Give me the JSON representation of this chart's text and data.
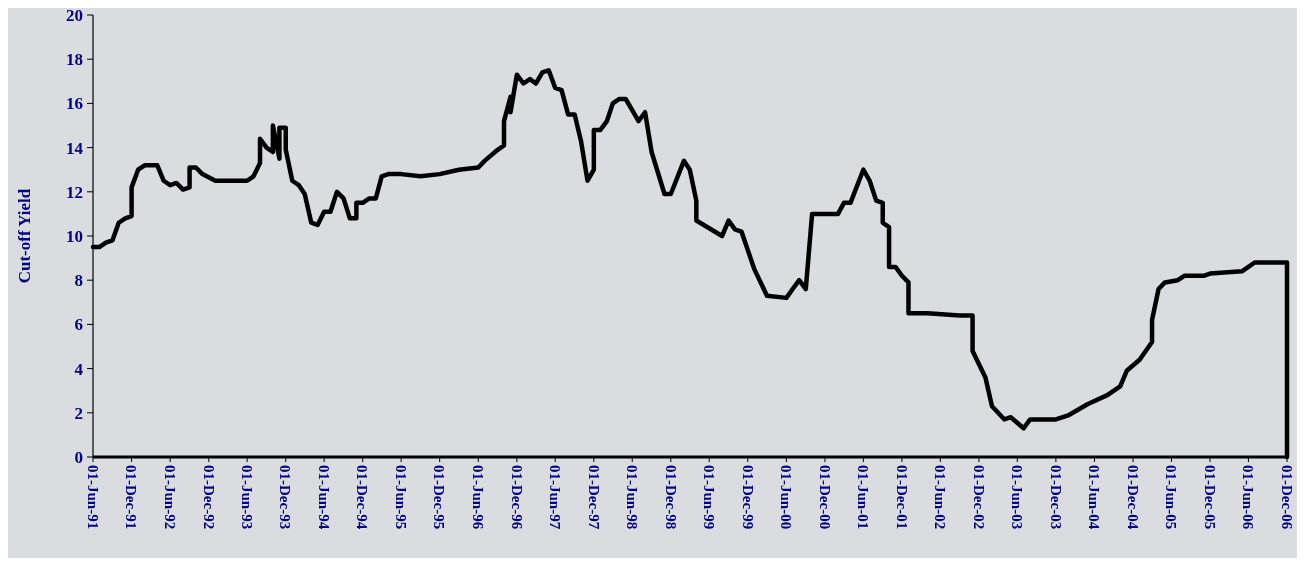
{
  "chart_data": {
    "type": "line",
    "ylabel": "Cut-off Yield",
    "ylim": [
      0,
      20
    ],
    "yticks": [
      0,
      2,
      4,
      6,
      8,
      10,
      12,
      14,
      16,
      18,
      20
    ],
    "xlim": [
      "1991-06-01",
      "2006-12-01"
    ],
    "xticks": [
      {
        "value": "1991-06-01",
        "label": "01-Jun-91"
      },
      {
        "value": "1991-12-01",
        "label": "01-Dec-91"
      },
      {
        "value": "1992-06-01",
        "label": "01-Jun-92"
      },
      {
        "value": "1992-12-01",
        "label": "01-Dec-92"
      },
      {
        "value": "1993-06-01",
        "label": "01-Jun-93"
      },
      {
        "value": "1993-12-01",
        "label": "01-Dec-93"
      },
      {
        "value": "1994-06-01",
        "label": "01-Jun-94"
      },
      {
        "value": "1994-12-01",
        "label": "01-Dec-94"
      },
      {
        "value": "1995-06-01",
        "label": "01-Jun-95"
      },
      {
        "value": "1995-12-01",
        "label": "01-Dec-95"
      },
      {
        "value": "1996-06-01",
        "label": "01-Jun-96"
      },
      {
        "value": "1996-12-01",
        "label": "01-Dec-96"
      },
      {
        "value": "1997-06-01",
        "label": "01-Jun-97"
      },
      {
        "value": "1997-12-01",
        "label": "01-Dec-97"
      },
      {
        "value": "1998-06-01",
        "label": "01-Jun-98"
      },
      {
        "value": "1998-12-01",
        "label": "01-Dec-98"
      },
      {
        "value": "1999-06-01",
        "label": "01-Jun-99"
      },
      {
        "value": "1999-12-01",
        "label": "01-Dec-99"
      },
      {
        "value": "2000-06-01",
        "label": "01-Jun-00"
      },
      {
        "value": "2000-12-01",
        "label": "01-Dec-00"
      },
      {
        "value": "2001-06-01",
        "label": "01-Jun-01"
      },
      {
        "value": "2001-12-01",
        "label": "01-Dec-01"
      },
      {
        "value": "2002-06-01",
        "label": "01-Jun-02"
      },
      {
        "value": "2002-12-01",
        "label": "01-Dec-02"
      },
      {
        "value": "2003-06-01",
        "label": "01-Jun-03"
      },
      {
        "value": "2003-12-01",
        "label": "01-Dec-03"
      },
      {
        "value": "2004-06-01",
        "label": "01-Jun-04"
      },
      {
        "value": "2004-12-01",
        "label": "01-Dec-04"
      },
      {
        "value": "2005-06-01",
        "label": "01-Jun-05"
      },
      {
        "value": "2005-12-01",
        "label": "01-Dec-05"
      },
      {
        "value": "2006-06-01",
        "label": "01-Jun-06"
      },
      {
        "value": "2006-12-01",
        "label": "01-Dec-06"
      }
    ],
    "grid": false,
    "marker": "none",
    "line_style": "solid",
    "x": [
      "1991-06",
      "1991-07",
      "1991-08",
      "1991-09",
      "1991-10",
      "1991-11",
      "1991-12",
      "1991-12",
      "1992-01",
      "1992-02",
      "1992-04",
      "1992-05",
      "1992-06",
      "1992-07",
      "1992-08",
      "1992-09",
      "1992-09",
      "1992-10",
      "1992-11",
      "1993-01",
      "1993-06",
      "1993-07",
      "1993-08",
      "1993-08",
      "1993-09",
      "1993-10",
      "1993-10",
      "1993-11",
      "1993-11",
      "1993-12",
      "1993-12",
      "1994-01",
      "1994-02",
      "1994-03",
      "1994-04",
      "1994-05",
      "1994-06",
      "1994-07",
      "1994-08",
      "1994-09",
      "1994-10",
      "1994-11",
      "1994-11",
      "1994-12",
      "1995-01",
      "1995-02",
      "1995-03",
      "1995-04",
      "1995-06",
      "1995-09",
      "1995-12",
      "1996-03",
      "1996-06",
      "1996-07",
      "1996-09",
      "1996-10",
      "1996-10",
      "1996-11",
      "1996-11",
      "1996-12",
      "1997-01",
      "1997-02",
      "1997-03",
      "1997-04",
      "1997-05",
      "1997-06",
      "1997-07",
      "1997-08",
      "1997-09",
      "1997-10",
      "1997-11",
      "1997-12",
      "1997-12",
      "1998-01",
      "1998-02",
      "1998-03",
      "1998-04",
      "1998-05",
      "1998-06",
      "1998-07",
      "1998-08",
      "1998-09",
      "1998-11",
      "1998-12",
      "1999-02",
      "1999-03",
      "1999-04",
      "1999-04",
      "1999-08",
      "1999-09",
      "1999-10",
      "1999-11",
      "2000-01",
      "2000-03",
      "2000-06",
      "2000-07",
      "2000-08",
      "2000-09",
      "2000-10",
      "2001-02",
      "2001-03",
      "2001-04",
      "2001-06",
      "2001-07",
      "2001-08",
      "2001-09",
      "2001-09",
      "2001-10",
      "2001-10",
      "2001-11",
      "2001-12",
      "2002-01",
      "2002-01",
      "2002-04",
      "2002-09",
      "2002-11",
      "2002-11",
      "2003-01",
      "2003-02",
      "2003-04",
      "2003-05",
      "2003-07",
      "2003-08",
      "2003-12",
      "2004-02",
      "2004-05",
      "2004-08",
      "2004-10",
      "2004-11",
      "2005-01",
      "2005-03",
      "2005-03",
      "2005-04",
      "2005-05",
      "2005-07",
      "2005-08",
      "2005-11",
      "2005-12",
      "2006-05",
      "2006-06",
      "2006-07",
      "2006-12",
      "2006-12"
    ],
    "series": [
      {
        "color": "#000000",
        "values": [
          9.5,
          9.5,
          9.7,
          9.8,
          10.6,
          10.8,
          10.9,
          12.2,
          13.0,
          13.2,
          13.2,
          12.5,
          12.3,
          12.4,
          12.1,
          12.2,
          13.1,
          13.1,
          12.8,
          12.5,
          12.5,
          12.7,
          13.3,
          14.4,
          14.0,
          13.8,
          15.0,
          13.5,
          14.9,
          14.9,
          13.9,
          12.5,
          12.3,
          11.9,
          10.6,
          10.5,
          11.1,
          11.1,
          12.0,
          11.7,
          10.8,
          10.8,
          11.5,
          11.5,
          11.7,
          11.7,
          12.7,
          12.8,
          12.8,
          12.7,
          12.8,
          13.0,
          13.1,
          13.4,
          13.9,
          14.1,
          15.2,
          16.3,
          15.6,
          17.3,
          16.9,
          17.1,
          16.9,
          17.4,
          17.5,
          16.7,
          16.6,
          15.5,
          15.5,
          14.3,
          12.5,
          13.0,
          14.8,
          14.8,
          15.2,
          16.0,
          16.2,
          16.2,
          15.7,
          15.2,
          15.6,
          13.8,
          11.9,
          11.9,
          13.4,
          13.0,
          11.6,
          10.7,
          10.0,
          10.7,
          10.3,
          10.2,
          8.5,
          7.3,
          7.2,
          7.6,
          8.0,
          7.6,
          11.0,
          11.0,
          11.5,
          11.5,
          13.0,
          12.5,
          11.6,
          11.5,
          10.6,
          10.4,
          8.6,
          8.6,
          8.2,
          7.9,
          6.5,
          6.5,
          6.4,
          6.4,
          4.8,
          3.6,
          2.3,
          1.7,
          1.8,
          1.3,
          1.7,
          1.7,
          1.9,
          2.4,
          2.8,
          3.2,
          3.9,
          4.4,
          5.2,
          6.2,
          7.6,
          7.9,
          8.0,
          8.2,
          8.2,
          8.3,
          8.4,
          8.6,
          8.8,
          8.8,
          0
        ]
      }
    ]
  }
}
